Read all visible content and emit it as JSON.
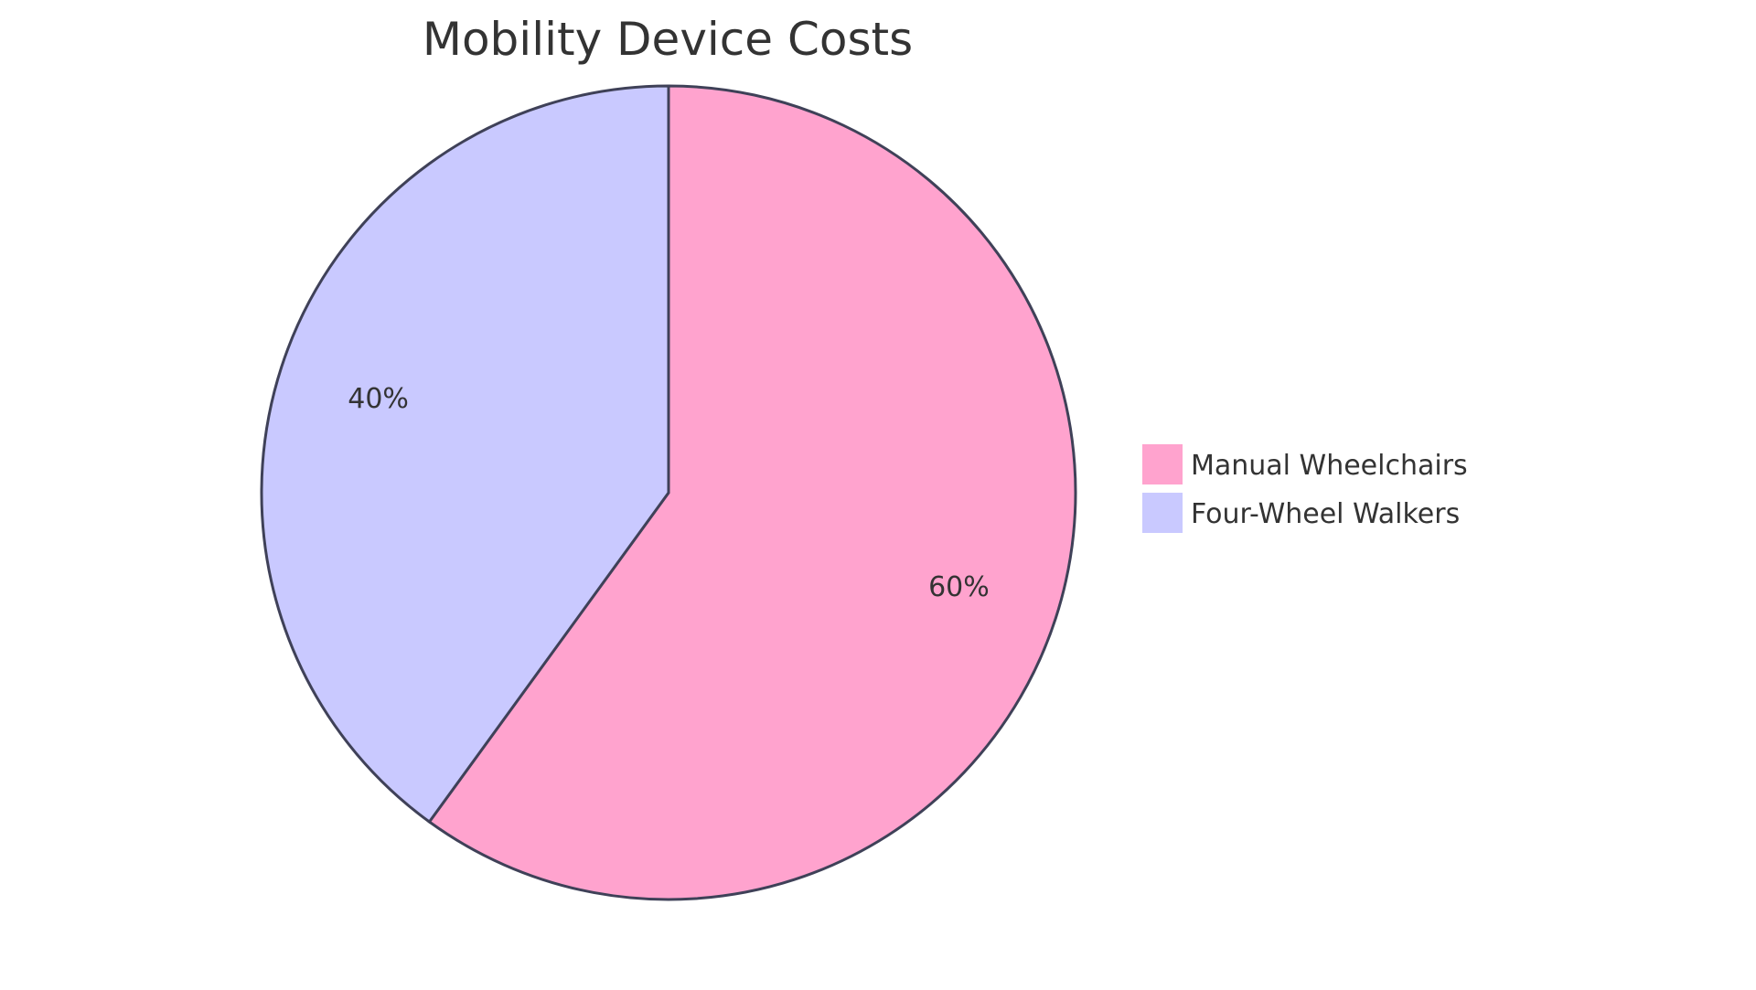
{
  "chart_data": {
    "type": "pie",
    "title": "Mobility Device Costs",
    "slices": [
      {
        "label": "Manual Wheelchairs",
        "value": 60,
        "display": "60%",
        "color": "#FFA3CE"
      },
      {
        "label": "Four-Wheel Walkers",
        "value": 40,
        "display": "40%",
        "color": "#C9C9FF"
      }
    ],
    "stroke_color": "#3F4158",
    "legend_position": "right"
  }
}
